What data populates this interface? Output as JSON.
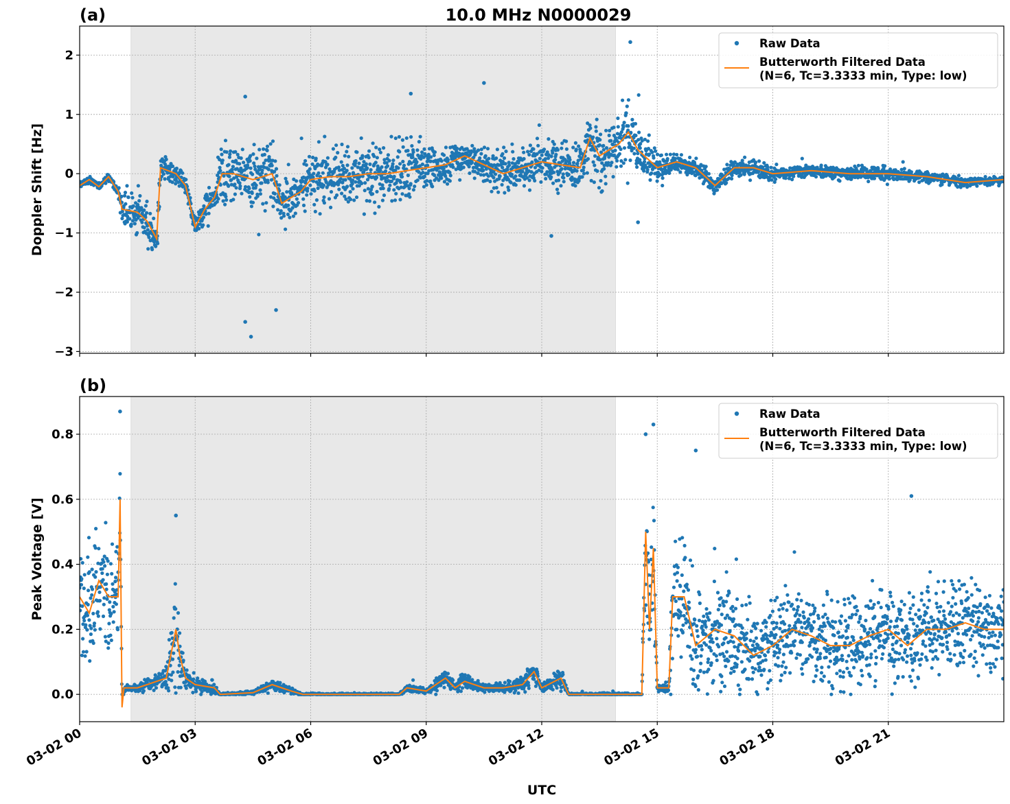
{
  "chart_data": [
    {
      "panel_label": "(a)",
      "title": "10.0 MHz N0000029",
      "type": "scatter+line",
      "ylabel": "Doppler Shift [Hz]",
      "xlabel": "",
      "ylim": [
        -3.03,
        2.49
      ],
      "xlim": [
        "03-02 00:00",
        "03-03 00:00"
      ],
      "yticks": [
        2,
        1,
        0,
        -1,
        -2,
        -3
      ],
      "ytick_labels": [
        "2",
        "1",
        "0",
        "−1",
        "−2",
        "−3"
      ],
      "grid": true,
      "legend_placement": "top-right",
      "legend": [
        "Raw Data",
        "Butterworth Filtered Data",
        "(N=6, Tc=3.3333 min, Type: low)"
      ],
      "shaded_interval": [
        "03-02 01:20",
        "03-02 13:55"
      ],
      "series_filtered": [
        [
          "03-02 00:00",
          -0.2,
          0.05
        ],
        [
          "03-02 00:15",
          -0.1,
          0.05
        ],
        [
          "03-02 00:30",
          -0.22,
          0.05
        ],
        [
          "03-02 00:45",
          -0.05,
          0.05
        ],
        [
          "03-02 01:00",
          -0.3,
          0.06
        ],
        [
          "03-02 01:06",
          -0.6,
          0.3
        ],
        [
          "03-02 01:30",
          -0.65,
          0.3
        ],
        [
          "03-02 01:45",
          -0.8,
          0.3
        ],
        [
          "03-02 02:00",
          -1.1,
          0.3
        ],
        [
          "03-02 02:06",
          0.1,
          0.25
        ],
        [
          "03-02 02:30",
          0.0,
          0.15
        ],
        [
          "03-02 02:45",
          -0.2,
          0.15
        ],
        [
          "03-02 03:00",
          -0.9,
          0.15
        ],
        [
          "03-02 03:15",
          -0.6,
          0.2
        ],
        [
          "03-02 03:30",
          -0.4,
          0.2
        ],
        [
          "03-02 03:42",
          0.0,
          0.45
        ],
        [
          "03-02 04:00",
          0.0,
          0.45
        ],
        [
          "03-02 04:30",
          -0.1,
          0.5
        ],
        [
          "03-02 05:00",
          0.0,
          0.5
        ],
        [
          "03-02 05:15",
          -0.5,
          0.3
        ],
        [
          "03-02 05:30",
          -0.4,
          0.3
        ],
        [
          "03-02 05:45",
          -0.3,
          0.35
        ],
        [
          "03-02 06:00",
          -0.1,
          0.4
        ],
        [
          "03-02 06:30",
          -0.05,
          0.4
        ],
        [
          "03-02 07:00",
          -0.05,
          0.4
        ],
        [
          "03-02 07:30",
          0.0,
          0.45
        ],
        [
          "03-02 08:00",
          0.0,
          0.45
        ],
        [
          "03-02 08:30",
          0.05,
          0.45
        ],
        [
          "03-02 09:00",
          0.1,
          0.35
        ],
        [
          "03-02 09:30",
          0.15,
          0.3
        ],
        [
          "03-02 10:00",
          0.3,
          0.2
        ],
        [
          "03-02 10:30",
          0.15,
          0.25
        ],
        [
          "03-02 11:00",
          0.0,
          0.3
        ],
        [
          "03-02 11:30",
          0.1,
          0.3
        ],
        [
          "03-02 12:00",
          0.2,
          0.3
        ],
        [
          "03-02 12:30",
          0.15,
          0.35
        ],
        [
          "03-02 13:00",
          0.1,
          0.4
        ],
        [
          "03-02 13:15",
          0.6,
          0.45
        ],
        [
          "03-02 13:30",
          0.3,
          0.45
        ],
        [
          "03-02 14:00",
          0.5,
          0.45
        ],
        [
          "03-02 14:15",
          0.7,
          0.45
        ],
        [
          "03-02 14:30",
          0.4,
          0.4
        ],
        [
          "03-02 15:00",
          0.1,
          0.2
        ],
        [
          "03-02 15:30",
          0.2,
          0.15
        ],
        [
          "03-02 16:00",
          0.1,
          0.15
        ],
        [
          "03-02 16:30",
          -0.2,
          0.12
        ],
        [
          "03-02 17:00",
          0.1,
          0.12
        ],
        [
          "03-02 17:30",
          0.1,
          0.15
        ],
        [
          "03-02 18:00",
          0.0,
          0.1
        ],
        [
          "03-02 19:00",
          0.05,
          0.1
        ],
        [
          "03-02 20:00",
          0.0,
          0.1
        ],
        [
          "03-02 21:00",
          0.0,
          0.1
        ],
        [
          "03-02 22:00",
          -0.05,
          0.08
        ],
        [
          "03-02 23:00",
          -0.15,
          0.06
        ],
        [
          "03-03 00:00",
          -0.1,
          0.06
        ]
      ],
      "raw_outliers": [
        [
          "03-02 14:18",
          2.22
        ],
        [
          "03-02 04:27",
          -2.75
        ],
        [
          "03-02 05:06",
          -2.3
        ],
        [
          "03-02 04:18",
          -2.5
        ],
        [
          "03-02 10:30",
          1.53
        ],
        [
          "03-02 08:36",
          1.35
        ],
        [
          "03-02 04:18",
          1.3
        ],
        [
          "03-02 14:30",
          -0.82
        ],
        [
          "03-02 12:15",
          -1.05
        ]
      ]
    },
    {
      "panel_label": "(b)",
      "type": "scatter+line",
      "ylabel": "Peak Voltage [V]",
      "xlabel": "UTC",
      "ylim": [
        -0.084,
        0.916
      ],
      "xlim": [
        "03-02 00:00",
        "03-03 00:00"
      ],
      "yticks": [
        0.0,
        0.2,
        0.4,
        0.6,
        0.8
      ],
      "ytick_labels": [
        "0.0",
        "0.2",
        "0.4",
        "0.6",
        "0.8"
      ],
      "xticks": [
        "03-02 00:00",
        "03-02 03:00",
        "03-02 06:00",
        "03-02 09:00",
        "03-02 12:00",
        "03-02 15:00",
        "03-02 18:00",
        "03-02 21:00"
      ],
      "xtick_labels": [
        "03-02 00",
        "03-02 03",
        "03-02 06",
        "03-02 09",
        "03-02 12",
        "03-02 15",
        "03-02 18",
        "03-02 21"
      ],
      "grid": true,
      "legend_placement": "top-right",
      "legend": [
        "Raw Data",
        "Butterworth Filtered Data",
        "(N=6, Tc=3.3333 min, Type: low)"
      ],
      "shaded_interval": [
        "03-02 01:20",
        "03-02 13:55"
      ],
      "series_filtered": [
        [
          "03-02 00:00",
          0.3,
          0.15
        ],
        [
          "03-02 00:15",
          0.25,
          0.15
        ],
        [
          "03-02 00:30",
          0.35,
          0.15
        ],
        [
          "03-02 00:45",
          0.3,
          0.15
        ],
        [
          "03-02 01:00",
          0.3,
          0.15
        ],
        [
          "03-02 01:03",
          0.6,
          0.2
        ],
        [
          "03-02 01:06",
          -0.04,
          0.01
        ],
        [
          "03-02 01:09",
          0.02,
          0.01
        ],
        [
          "03-02 01:30",
          0.02,
          0.01
        ],
        [
          "03-02 02:00",
          0.04,
          0.02
        ],
        [
          "03-02 02:15",
          0.05,
          0.03
        ],
        [
          "03-02 02:30",
          0.2,
          0.15
        ],
        [
          "03-02 02:36",
          0.12,
          0.1
        ],
        [
          "03-02 02:45",
          0.05,
          0.03
        ],
        [
          "03-02 03:00",
          0.03,
          0.02
        ],
        [
          "03-02 03:30",
          0.02,
          0.02
        ],
        [
          "03-02 03:39",
          0.0,
          0.003
        ],
        [
          "03-02 04:30",
          0.005,
          0.005
        ],
        [
          "03-02 05:00",
          0.03,
          0.015
        ],
        [
          "03-02 05:30",
          0.01,
          0.008
        ],
        [
          "03-02 05:48",
          0.0,
          0.003
        ],
        [
          "03-02 08:18",
          0.0,
          0.003
        ],
        [
          "03-02 08:30",
          0.02,
          0.01
        ],
        [
          "03-02 09:00",
          0.01,
          0.006
        ],
        [
          "03-02 09:30",
          0.05,
          0.03
        ],
        [
          "03-02 09:45",
          0.02,
          0.01
        ],
        [
          "03-02 10:00",
          0.04,
          0.025
        ],
        [
          "03-02 10:30",
          0.02,
          0.01
        ],
        [
          "03-02 11:00",
          0.02,
          0.015
        ],
        [
          "03-02 11:30",
          0.03,
          0.02
        ],
        [
          "03-02 11:48",
          0.07,
          0.04
        ],
        [
          "03-02 12:00",
          0.02,
          0.01
        ],
        [
          "03-02 12:30",
          0.05,
          0.03
        ],
        [
          "03-02 12:42",
          0.0,
          0.004
        ],
        [
          "03-02 14:36",
          0.0,
          0.004
        ],
        [
          "03-02 14:42",
          0.5,
          0.2
        ],
        [
          "03-02 14:48",
          0.2,
          0.15
        ],
        [
          "03-02 14:54",
          0.45,
          0.2
        ],
        [
          "03-02 15:00",
          0.02,
          0.01
        ],
        [
          "03-02 15:18",
          0.02,
          0.01
        ],
        [
          "03-02 15:24",
          0.3,
          0.15
        ],
        [
          "03-02 15:42",
          0.3,
          0.15
        ],
        [
          "03-02 16:00",
          0.15,
          0.15
        ],
        [
          "03-02 16:30",
          0.2,
          0.15
        ],
        [
          "03-02 17:00",
          0.18,
          0.14
        ],
        [
          "03-02 17:30",
          0.12,
          0.12
        ],
        [
          "03-02 18:00",
          0.15,
          0.12
        ],
        [
          "03-02 18:30",
          0.2,
          0.13
        ],
        [
          "03-02 19:00",
          0.18,
          0.12
        ],
        [
          "03-02 19:30",
          0.15,
          0.12
        ],
        [
          "03-02 20:00",
          0.15,
          0.12
        ],
        [
          "03-02 20:30",
          0.18,
          0.13
        ],
        [
          "03-02 21:00",
          0.2,
          0.14
        ],
        [
          "03-02 21:30",
          0.15,
          0.13
        ],
        [
          "03-02 22:00",
          0.2,
          0.14
        ],
        [
          "03-02 22:30",
          0.2,
          0.13
        ],
        [
          "03-02 23:00",
          0.22,
          0.13
        ],
        [
          "03-02 23:30",
          0.2,
          0.12
        ],
        [
          "03-03 00:00",
          0.2,
          0.12
        ]
      ],
      "raw_outliers": [
        [
          "03-02 01:03",
          0.87
        ],
        [
          "03-02 14:54",
          0.83
        ],
        [
          "03-02 14:42",
          0.8
        ],
        [
          "03-02 16:00",
          0.75
        ],
        [
          "03-02 02:30",
          0.55
        ],
        [
          "03-02 21:36",
          0.61
        ]
      ]
    }
  ],
  "colors": {
    "raw": "#1f77b4",
    "filtered": "#ff7f0e",
    "shade": "#e8e8e8"
  }
}
